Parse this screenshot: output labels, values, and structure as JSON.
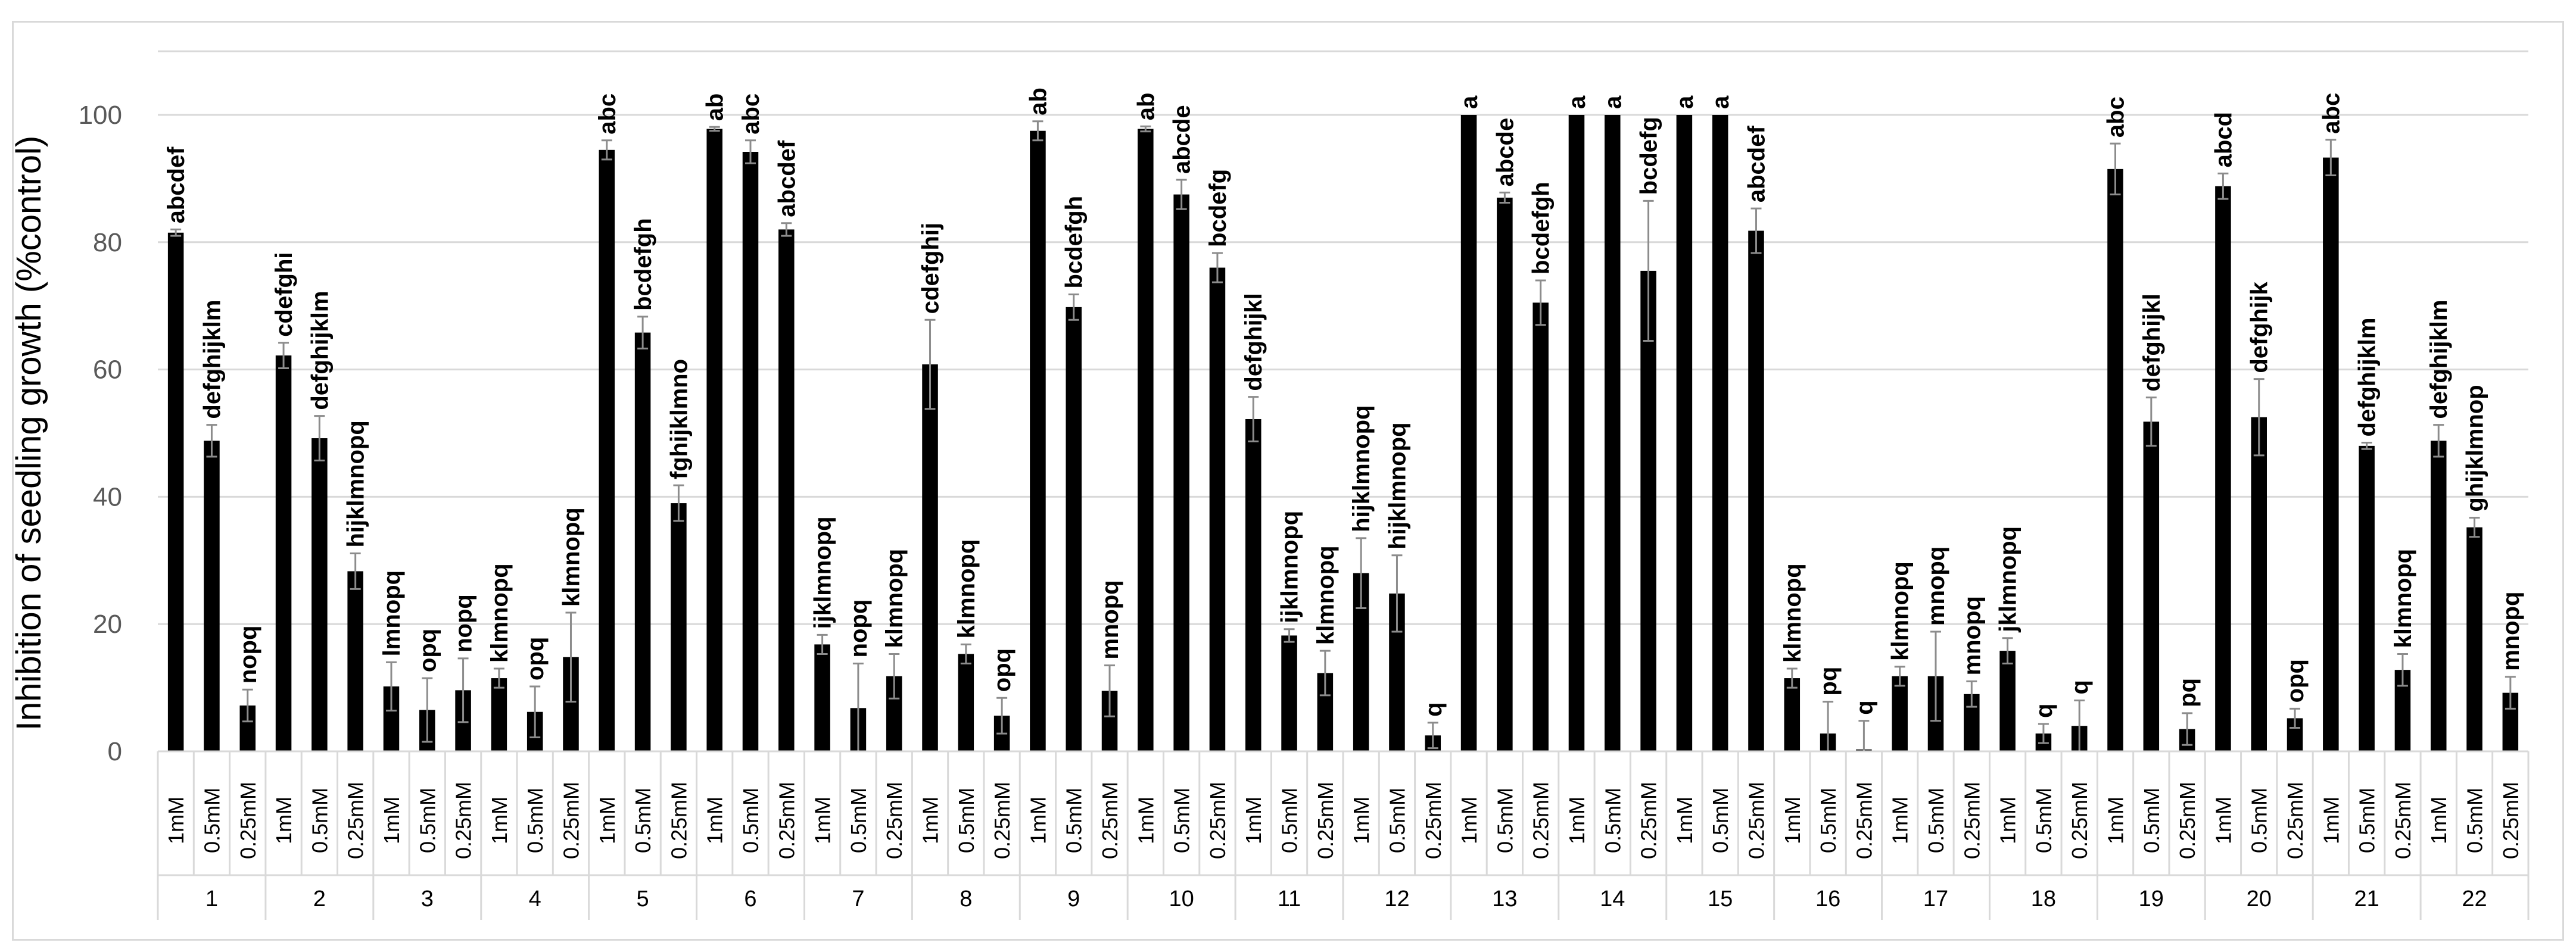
{
  "chart_data": {
    "type": "bar",
    "ylabel": "Inhibition of seedling growth (%control)",
    "ylim": [
      0,
      100
    ],
    "yticks": [
      0,
      20,
      40,
      60,
      80,
      100
    ],
    "grid": true,
    "concentrations": [
      "1mM",
      "0.5mM",
      "0.25mM"
    ],
    "groups": [
      "1",
      "2",
      "3",
      "4",
      "5",
      "6",
      "7",
      "8",
      "9",
      "10",
      "11",
      "12",
      "13",
      "14",
      "15",
      "16",
      "17",
      "18",
      "19",
      "20",
      "21",
      "22"
    ],
    "values": [
      81.5,
      48.8,
      7.2,
      62.2,
      49.2,
      28.3,
      10.2,
      6.5,
      9.6,
      11.5,
      6.2,
      14.8,
      94.5,
      65.8,
      39.0,
      97.8,
      94.2,
      82.0,
      16.8,
      6.8,
      11.8,
      60.8,
      15.3,
      5.6,
      97.5,
      69.8,
      9.5,
      97.8,
      87.5,
      76.0,
      52.2,
      18.2,
      12.3,
      28.0,
      24.8,
      2.5,
      100,
      87.0,
      70.5,
      100,
      100,
      75.5,
      100,
      100,
      81.8,
      11.5,
      2.8,
      0.3,
      11.8,
      11.8,
      9.0,
      15.8,
      2.8,
      4.0,
      91.5,
      51.8,
      3.5,
      88.8,
      52.5,
      5.2,
      93.3,
      48.0,
      12.8,
      48.8,
      35.2,
      9.2
    ],
    "errors": [
      0.5,
      2.5,
      2.5,
      2.0,
      3.5,
      2.8,
      3.8,
      5.0,
      5.0,
      1.5,
      4.0,
      7.0,
      1.5,
      2.5,
      2.8,
      0.3,
      1.8,
      1.0,
      1.5,
      7.0,
      3.5,
      7.0,
      1.5,
      2.8,
      1.5,
      2.0,
      4.0,
      0.4,
      2.3,
      2.3,
      3.5,
      1.0,
      3.5,
      5.5,
      6.0,
      2.0,
      0,
      0.8,
      3.5,
      0,
      0,
      11.0,
      0,
      0,
      3.5,
      1.5,
      5.0,
      4.5,
      1.5,
      7.0,
      2.0,
      2.0,
      1.5,
      4.0,
      4.0,
      3.8,
      2.5,
      2.0,
      6.0,
      1.5,
      2.8,
      0.5,
      2.5,
      2.5,
      1.5,
      2.5
    ],
    "significance": [
      "abcdef",
      "defghijklm",
      "nopq",
      "cdefghi",
      "defghijklm",
      "hijklmnopq",
      "lmnopq",
      "opq",
      "nopq",
      "klmnopq",
      "opq",
      "klmnopq",
      "abc",
      "bcdefgh",
      "fghijklmno",
      "ab",
      "abc",
      "abcdef",
      "ijklmnopq",
      "nopq",
      "klmnopq",
      "cdefghij",
      "klmnopq",
      "opq",
      "ab",
      "bcdefgh",
      "mnopq",
      "ab",
      "abcde",
      "bcdefg",
      "defghijkl",
      "ijklmnopq",
      "klmnopq",
      "hijklmnopq",
      "hijklmnopq",
      "q",
      "a",
      "abcde",
      "bcdefgh",
      "a",
      "a",
      "bcdefg",
      "a",
      "a",
      "abcdef",
      "klmnopq",
      "pq",
      "q",
      "klmnopq",
      "mnopq",
      "mnopq",
      "jklmnopq",
      "q",
      "q",
      "abc",
      "defghijkl",
      "pq",
      "abcd",
      "defghijk",
      "opq",
      "abc",
      "defghijklm",
      "klmnopq",
      "defghijklm",
      "ghijklmnop",
      "mnopq"
    ]
  }
}
